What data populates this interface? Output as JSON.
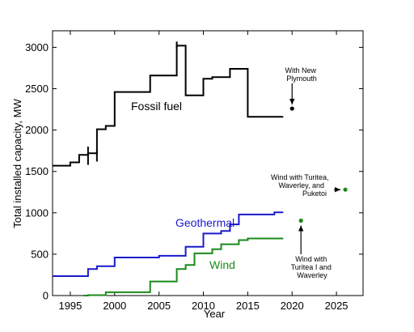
{
  "chart_data": {
    "type": "line",
    "title": "",
    "xlabel": "Year",
    "ylabel": "Total installed capacity, MW",
    "xlim": [
      1993,
      2028
    ],
    "ylim": [
      0,
      3200
    ],
    "xticks": [
      1995,
      2000,
      2005,
      2010,
      2015,
      2020,
      2025
    ],
    "yticks": [
      0,
      500,
      1000,
      1500,
      2000,
      2500,
      3000
    ],
    "grid": false,
    "legend": "none",
    "series": [
      {
        "name": "Fossil fuel",
        "color": "#000000",
        "style": "step",
        "points": [
          [
            1993,
            1570
          ],
          [
            1995,
            1570
          ],
          [
            1995,
            1610
          ],
          [
            1996,
            1610
          ],
          [
            1996,
            1700
          ],
          [
            1997,
            1700
          ],
          [
            1997,
            1720
          ],
          [
            1998,
            1720
          ],
          [
            1998,
            2010
          ],
          [
            1999,
            2010
          ],
          [
            1999,
            2050
          ],
          [
            2000,
            2050
          ],
          [
            2000,
            2460
          ],
          [
            2004,
            2460
          ],
          [
            2004,
            2660
          ],
          [
            2007,
            2660
          ],
          [
            2007,
            3020
          ],
          [
            2008,
            3020
          ],
          [
            2008,
            2420
          ],
          [
            2010,
            2420
          ],
          [
            2010,
            2620
          ],
          [
            2011,
            2620
          ],
          [
            2011,
            2640
          ],
          [
            2013,
            2640
          ],
          [
            2013,
            2740
          ],
          [
            2015,
            2740
          ],
          [
            2015,
            2160
          ],
          [
            2019,
            2160
          ]
        ],
        "spikes": [
          [
            1997,
            1580,
            1800
          ],
          [
            1998,
            1620,
            1750
          ],
          [
            2007,
            2980,
            3070
          ]
        ]
      },
      {
        "name": "Geothermal",
        "color": "#1a1acc",
        "style": "step",
        "points": [
          [
            1993,
            235
          ],
          [
            1997,
            235
          ],
          [
            1997,
            320
          ],
          [
            1998,
            320
          ],
          [
            1998,
            355
          ],
          [
            2000,
            355
          ],
          [
            2000,
            460
          ],
          [
            2005,
            460
          ],
          [
            2005,
            480
          ],
          [
            2008,
            480
          ],
          [
            2008,
            590
          ],
          [
            2010,
            590
          ],
          [
            2010,
            750
          ],
          [
            2012,
            750
          ],
          [
            2012,
            780
          ],
          [
            2013,
            780
          ],
          [
            2013,
            860
          ],
          [
            2014,
            860
          ],
          [
            2014,
            980
          ],
          [
            2018,
            980
          ],
          [
            2018,
            1005
          ],
          [
            2019,
            1005
          ]
        ]
      },
      {
        "name": "Wind",
        "color": "#1a8a1a",
        "style": "step",
        "points": [
          [
            1996.5,
            0
          ],
          [
            1997,
            0
          ],
          [
            1997,
            5
          ],
          [
            1999,
            5
          ],
          [
            1999,
            40
          ],
          [
            2004,
            40
          ],
          [
            2004,
            170
          ],
          [
            2007,
            170
          ],
          [
            2007,
            320
          ],
          [
            2008,
            320
          ],
          [
            2008,
            370
          ],
          [
            2009,
            370
          ],
          [
            2009,
            510
          ],
          [
            2011,
            510
          ],
          [
            2011,
            560
          ],
          [
            2012,
            560
          ],
          [
            2012,
            620
          ],
          [
            2014,
            620
          ],
          [
            2014,
            670
          ],
          [
            2015,
            670
          ],
          [
            2015,
            690
          ],
          [
            2019,
            690
          ]
        ]
      }
    ],
    "points": [
      {
        "id": "new-plymouth",
        "x": 2020,
        "y": 2260,
        "color": "#000000"
      },
      {
        "id": "turitea-waverley-puketoi",
        "x": 2026,
        "y": 1280,
        "color": "#1a8a1a"
      },
      {
        "id": "turitea-i-waverley",
        "x": 2021,
        "y": 905,
        "color": "#1a8a1a"
      }
    ],
    "labels": {
      "fossil": "Fossil fuel",
      "geothermal": "Geothermal",
      "wind": "Wind"
    },
    "annotations": {
      "new_plymouth": [
        "With New",
        "Plymouth"
      ],
      "puketoi": [
        "Wind with Turitea,",
        "Waverley, and",
        "Puketoi"
      ],
      "turitea_i": [
        "Wind with",
        "Turitea I and",
        "Waverley"
      ]
    }
  }
}
